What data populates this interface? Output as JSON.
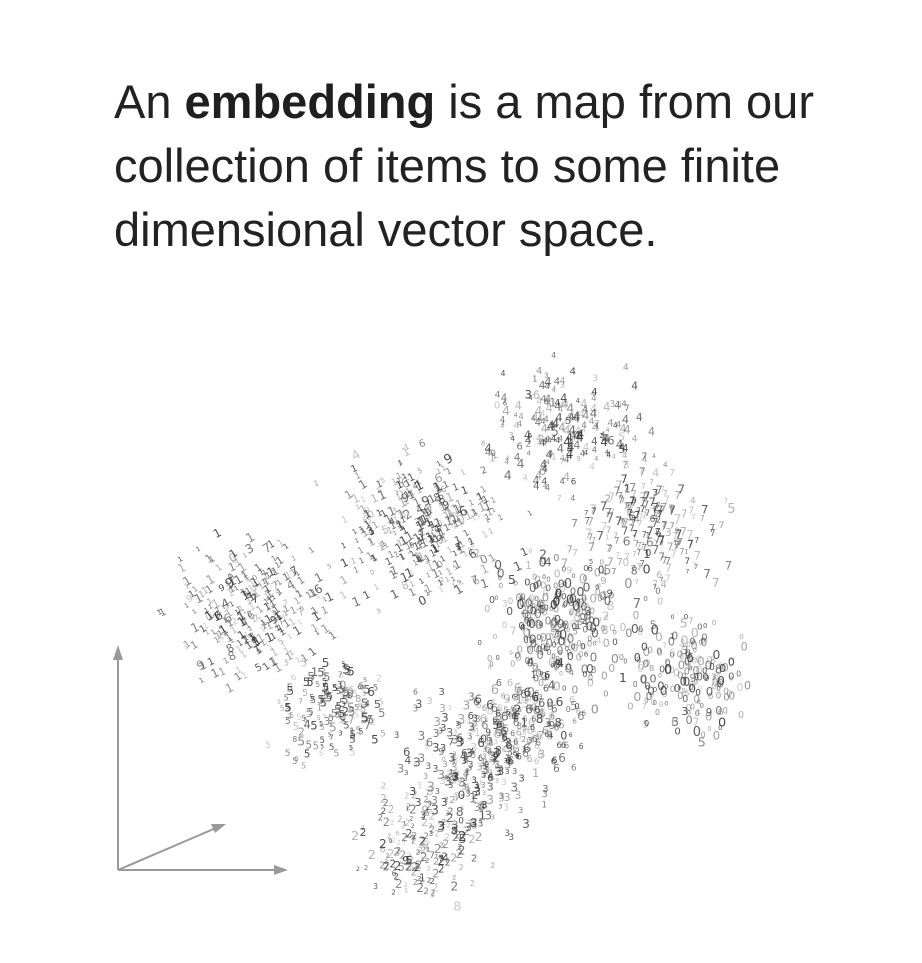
{
  "headline": {
    "prefix": "An ",
    "emphasis": "embedding",
    "suffix": " is a map from our collection of items to some finite dimensional vector space."
  },
  "figure": {
    "glyph_labels": [
      "0",
      "1",
      "2",
      "3",
      "4",
      "5",
      "6",
      "7",
      "8",
      "9"
    ],
    "glyph_color": "#333333",
    "axis_color": "#9a9a9a"
  }
}
